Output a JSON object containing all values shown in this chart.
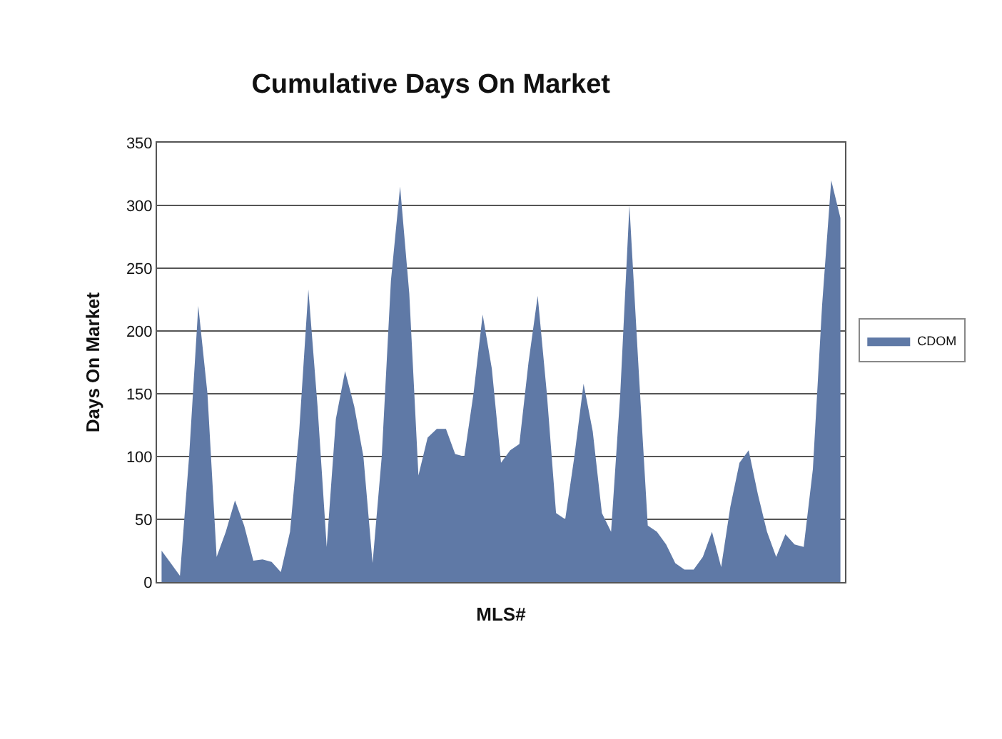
{
  "chart_data": {
    "type": "area",
    "title": "Cumulative Days On Market",
    "xlabel": "MLS#",
    "ylabel": "Days On Market",
    "categories": [
      null,
      null,
      null,
      null,
      null,
      null,
      null,
      null,
      null,
      null,
      null,
      null,
      null,
      null,
      null,
      null,
      null,
      null,
      null,
      null,
      null,
      null,
      null,
      null,
      null,
      null,
      null,
      null,
      null,
      null,
      null,
      null,
      null,
      null,
      null,
      null,
      null,
      null,
      null,
      null,
      null,
      null,
      null,
      null,
      null,
      null,
      null,
      null,
      null,
      null,
      null,
      null,
      null,
      null,
      null,
      null,
      null,
      null,
      null,
      null,
      null,
      null,
      null,
      null,
      null,
      null,
      null,
      null,
      null,
      null,
      null,
      null,
      null,
      null,
      null
    ],
    "series": [
      {
        "name": "CDOM",
        "color": "#5f79a6",
        "values": [
          25,
          15,
          5,
          100,
          220,
          150,
          20,
          40,
          65,
          45,
          17,
          18,
          16,
          8,
          40,
          120,
          233,
          140,
          28,
          130,
          168,
          140,
          100,
          15,
          100,
          240,
          315,
          230,
          85,
          115,
          122,
          122,
          102,
          100,
          150,
          213,
          170,
          95,
          105,
          110,
          175,
          228,
          150,
          55,
          50,
          100,
          158,
          120,
          55,
          40,
          150,
          300,
          170,
          45,
          40,
          30,
          15,
          10,
          10,
          20,
          40,
          12,
          60,
          95,
          105,
          70,
          40,
          20,
          38,
          30,
          28,
          90,
          220,
          320,
          290
        ]
      }
    ],
    "ylim": [
      0,
      350
    ],
    "yticks": [
      0,
      50,
      100,
      150,
      200,
      250,
      300,
      350
    ],
    "grid": "y",
    "legend": "right"
  }
}
